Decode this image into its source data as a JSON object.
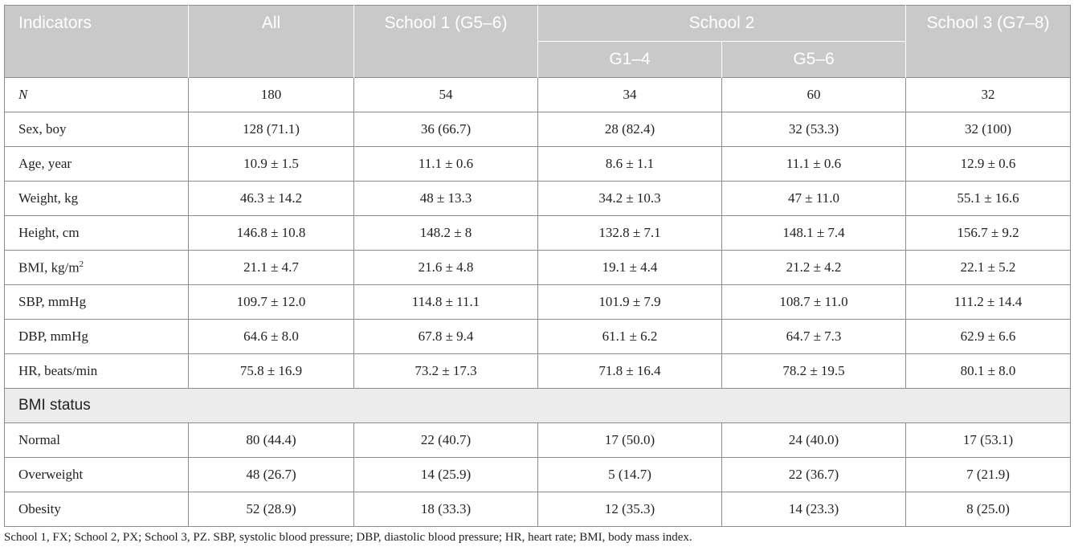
{
  "header": {
    "indicators": "Indicators",
    "all": "All",
    "school1": "School 1 (G5–6)",
    "school2": "School 2",
    "school2_g14": "G1–4",
    "school2_g56": "G5–6",
    "school3": "School 3 (G7–8)"
  },
  "rows": [
    {
      "label": "N",
      "italic": true,
      "all": "180",
      "s1": "54",
      "s2a": "34",
      "s2b": "60",
      "s3": "32"
    },
    {
      "label": "Sex, boy",
      "all": "128 (71.1)",
      "s1": "36 (66.7)",
      "s2a": "28 (82.4)",
      "s2b": "32 (53.3)",
      "s3": "32 (100)"
    },
    {
      "label": "Age, year",
      "all": "10.9 ± 1.5",
      "s1": "11.1 ± 0.6",
      "s2a": "8.6 ± 1.1",
      "s2b": "11.1 ± 0.6",
      "s3": "12.9 ± 0.6"
    },
    {
      "label": "Weight, kg",
      "all": "46.3 ± 14.2",
      "s1": "48 ± 13.3",
      "s2a": "34.2 ± 10.3",
      "s2b": "47 ± 11.0",
      "s3": "55.1 ± 16.6"
    },
    {
      "label": "Height, cm",
      "all": "146.8 ± 10.8",
      "s1": "148.2 ± 8",
      "s2a": "132.8 ± 7.1",
      "s2b": "148.1 ± 7.4",
      "s3": "156.7 ± 9.2"
    },
    {
      "label": "BMI, kg/m",
      "sup": "2",
      "all": "21.1 ± 4.7",
      "s1": "21.6 ± 4.8",
      "s2a": "19.1 ± 4.4",
      "s2b": "21.2 ± 4.2",
      "s3": "22.1 ± 5.2"
    },
    {
      "label": "SBP, mmHg",
      "all": "109.7 ± 12.0",
      "s1": "114.8 ± 11.1",
      "s2a": "101.9 ± 7.9",
      "s2b": "108.7 ± 11.0",
      "s3": "111.2 ± 14.4"
    },
    {
      "label": "DBP, mmHg",
      "all": "64.6 ± 8.0",
      "s1": "67.8 ± 9.4",
      "s2a": "61.1 ± 6.2",
      "s2b": "64.7 ± 7.3",
      "s3": "62.9 ± 6.6"
    },
    {
      "label": "HR, beats/min",
      "all": "75.8 ± 16.9",
      "s1": "73.2 ± 17.3",
      "s2a": "71.8 ± 16.4",
      "s2b": "78.2 ± 19.5",
      "s3": "80.1 ± 8.0"
    }
  ],
  "section": "BMI status",
  "bmi_rows": [
    {
      "label": "Normal",
      "all": "80 (44.4)",
      "s1": "22 (40.7)",
      "s2a": "17 (50.0)",
      "s2b": "24 (40.0)",
      "s3": "17 (53.1)"
    },
    {
      "label": "Overweight",
      "all": "48 (26.7)",
      "s1": "14 (25.9)",
      "s2a": "5 (14.7)",
      "s2b": "22 (36.7)",
      "s3": "7 (21.9)"
    },
    {
      "label": "Obesity",
      "all": "52 (28.9)",
      "s1": "18 (33.3)",
      "s2a": "12 (35.3)",
      "s2b": "14 (23.3)",
      "s3": "8 (25.0)"
    }
  ],
  "footnote": "School 1, FX; School 2, PX; School 3, PZ. SBP, systolic blood pressure; DBP, diastolic blood pressure; HR, heart rate; BMI, body mass index."
}
